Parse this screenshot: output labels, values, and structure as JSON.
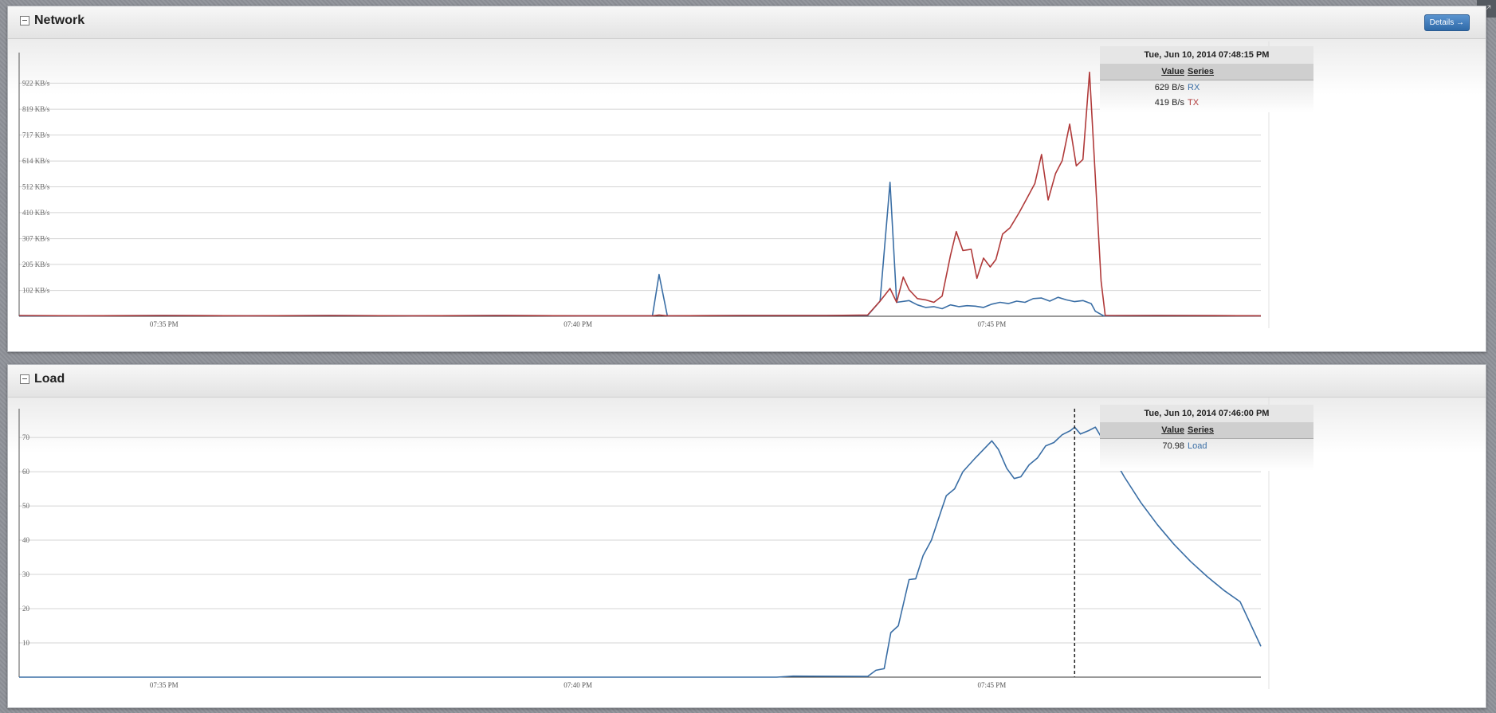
{
  "panels": [
    {
      "title": "Network",
      "details_label": "Details →",
      "legend": {
        "timestamp": "Tue, Jun 10, 2014 07:48:15 PM",
        "col_value": "Value",
        "col_series": "Series",
        "rows": [
          {
            "value": "629 B/s",
            "series": "RX",
            "color": "#3a6ea5"
          },
          {
            "value": "419 B/s",
            "series": "TX",
            "color": "#b03a3a"
          }
        ]
      }
    },
    {
      "title": "Load",
      "legend": {
        "timestamp": "Tue, Jun 10, 2014 07:46:00 PM",
        "col_value": "Value",
        "col_series": "Series",
        "rows": [
          {
            "value": "70.98",
            "series": "Load",
            "color": "#3a6ea5"
          }
        ]
      }
    }
  ],
  "chart_data": [
    {
      "type": "line",
      "xmin": 33.25,
      "xmax": 48.25,
      "ylim": [
        0,
        1024
      ],
      "yticks": [
        102,
        205,
        307,
        410,
        512,
        614,
        717,
        819,
        922
      ],
      "ytick_labels": [
        "102 KB/s",
        "205 KB/s",
        "307 KB/s",
        "410 KB/s",
        "512 KB/s",
        "614 KB/s",
        "717 KB/s",
        "819 KB/s",
        "922 KB/s"
      ],
      "xticks": [
        35,
        40,
        45
      ],
      "xtick_labels": [
        "07:35 PM",
        "07:40 PM",
        "07:45 PM"
      ],
      "grid": true,
      "series": [
        {
          "name": "RX",
          "color": "#3a6ea5",
          "points": [
            [
              33.25,
              2
            ],
            [
              34,
              2
            ],
            [
              35,
              3
            ],
            [
              36,
              2
            ],
            [
              37,
              3
            ],
            [
              38,
              2
            ],
            [
              39,
              3
            ],
            [
              40,
              2
            ],
            [
              40.9,
              2
            ],
            [
              40.98,
              165
            ],
            [
              41.08,
              2
            ],
            [
              42,
              3
            ],
            [
              43,
              3
            ],
            [
              43.5,
              3
            ],
            [
              43.65,
              60
            ],
            [
              43.77,
              530
            ],
            [
              43.85,
              55
            ],
            [
              44,
              62
            ],
            [
              44.1,
              45
            ],
            [
              44.2,
              35
            ],
            [
              44.3,
              38
            ],
            [
              44.4,
              30
            ],
            [
              44.5,
              45
            ],
            [
              44.6,
              38
            ],
            [
              44.7,
              42
            ],
            [
              44.8,
              40
            ],
            [
              44.9,
              35
            ],
            [
              45,
              48
            ],
            [
              45.1,
              55
            ],
            [
              45.2,
              50
            ],
            [
              45.3,
              60
            ],
            [
              45.4,
              55
            ],
            [
              45.5,
              70
            ],
            [
              45.6,
              72
            ],
            [
              45.7,
              60
            ],
            [
              45.8,
              75
            ],
            [
              45.9,
              65
            ],
            [
              46,
              58
            ],
            [
              46.1,
              62
            ],
            [
              46.2,
              50
            ],
            [
              46.25,
              20
            ],
            [
              46.35,
              2
            ],
            [
              47,
              3
            ],
            [
              48.25,
              2
            ]
          ]
        },
        {
          "name": "TX",
          "color": "#b03a3a",
          "points": [
            [
              33.25,
              3
            ],
            [
              34,
              2
            ],
            [
              35,
              3
            ],
            [
              36,
              2
            ],
            [
              37,
              3
            ],
            [
              38,
              2
            ],
            [
              39,
              3
            ],
            [
              40,
              2
            ],
            [
              40.9,
              2
            ],
            [
              40.98,
              5
            ],
            [
              41.08,
              2
            ],
            [
              42,
              3
            ],
            [
              43,
              3
            ],
            [
              43.5,
              5
            ],
            [
              43.65,
              60
            ],
            [
              43.77,
              110
            ],
            [
              43.85,
              55
            ],
            [
              43.93,
              155
            ],
            [
              44,
              105
            ],
            [
              44.1,
              70
            ],
            [
              44.2,
              65
            ],
            [
              44.3,
              55
            ],
            [
              44.4,
              80
            ],
            [
              44.5,
              240
            ],
            [
              44.57,
              335
            ],
            [
              44.65,
              260
            ],
            [
              44.75,
              265
            ],
            [
              44.82,
              150
            ],
            [
              44.9,
              230
            ],
            [
              44.98,
              195
            ],
            [
              45.05,
              225
            ],
            [
              45.13,
              325
            ],
            [
              45.22,
              350
            ],
            [
              45.33,
              410
            ],
            [
              45.43,
              470
            ],
            [
              45.52,
              525
            ],
            [
              45.6,
              640
            ],
            [
              45.68,
              460
            ],
            [
              45.77,
              565
            ],
            [
              45.85,
              615
            ],
            [
              45.94,
              760
            ],
            [
              46.02,
              595
            ],
            [
              46.1,
              620
            ],
            [
              46.18,
              965
            ],
            [
              46.32,
              140
            ],
            [
              46.37,
              3
            ],
            [
              47,
              3
            ],
            [
              48.25,
              2
            ]
          ]
        }
      ]
    },
    {
      "type": "line",
      "xmin": 33.25,
      "xmax": 48.25,
      "ylim": [
        0,
        77
      ],
      "yticks": [
        10,
        20,
        30,
        40,
        50,
        60,
        70
      ],
      "ytick_labels": [
        "10",
        "20",
        "30",
        "40",
        "50",
        "60",
        "70"
      ],
      "xticks": [
        35,
        40,
        45
      ],
      "xtick_labels": [
        "07:35 PM",
        "07:40 PM",
        "07:45 PM"
      ],
      "grid": true,
      "cursor_x": 46.0,
      "series": [
        {
          "name": "Load",
          "color": "#3a6ea5",
          "points": [
            [
              33.25,
              0
            ],
            [
              42.4,
              0
            ],
            [
              42.6,
              0.3
            ],
            [
              43.5,
              0.2
            ],
            [
              43.6,
              2
            ],
            [
              43.7,
              2.5
            ],
            [
              43.78,
              13
            ],
            [
              43.87,
              15
            ],
            [
              44,
              28.5
            ],
            [
              44.08,
              28.7
            ],
            [
              44.17,
              35.5
            ],
            [
              44.27,
              40
            ],
            [
              44.38,
              48
            ],
            [
              44.45,
              53
            ],
            [
              44.55,
              55
            ],
            [
              44.65,
              60
            ],
            [
              44.8,
              64
            ],
            [
              45,
              69
            ],
            [
              45.08,
              66.5
            ],
            [
              45.18,
              61
            ],
            [
              45.27,
              58
            ],
            [
              45.35,
              58.5
            ],
            [
              45.45,
              62
            ],
            [
              45.55,
              64
            ],
            [
              45.65,
              67.5
            ],
            [
              45.75,
              68.5
            ],
            [
              45.85,
              70.8
            ],
            [
              45.95,
              72
            ],
            [
              46,
              73
            ],
            [
              46.07,
              71
            ],
            [
              46.17,
              72
            ],
            [
              46.25,
              73
            ],
            [
              46.4,
              67
            ],
            [
              46.6,
              58.5
            ],
            [
              46.8,
              51
            ],
            [
              47,
              44.5
            ],
            [
              47.2,
              38.8
            ],
            [
              47.4,
              33.8
            ],
            [
              47.6,
              29.4
            ],
            [
              47.8,
              25.4
            ],
            [
              48,
              22
            ],
            [
              48.25,
              9
            ]
          ]
        }
      ]
    }
  ]
}
